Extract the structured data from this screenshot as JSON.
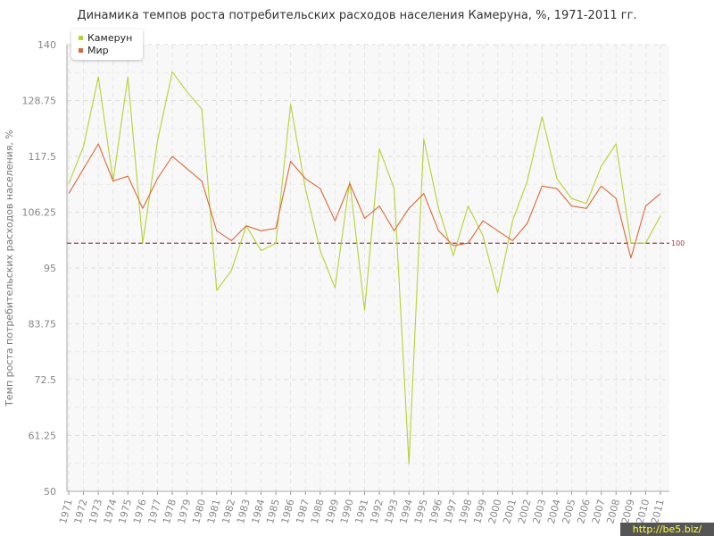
{
  "chart_data": {
    "type": "line",
    "title": "Динамика темпов роста потребительских расходов населения Камеруна, %, 1971-2011 гг.",
    "xlabel": "",
    "ylabel": "Темп роста потребительских расходов населения, %",
    "ylim": [
      50,
      140
    ],
    "yticks": [
      "50",
      "61.25",
      "72.5",
      "83.75",
      "95",
      "106.25",
      "117.5",
      "128.75",
      "140"
    ],
    "categories": [
      "1971",
      "1972",
      "1973",
      "1974",
      "1975",
      "1976",
      "1977",
      "1978",
      "1979",
      "1980",
      "1981",
      "1982",
      "1983",
      "1984",
      "1985",
      "1986",
      "1987",
      "1988",
      "1989",
      "1990",
      "1991",
      "1992",
      "1993",
      "1994",
      "1995",
      "1996",
      "1997",
      "1998",
      "1999",
      "2000",
      "2001",
      "2002",
      "2003",
      "2004",
      "2005",
      "2006",
      "2007",
      "2008",
      "2009",
      "2010",
      "2011"
    ],
    "series": [
      {
        "name": "Камерун",
        "color": "#b5d334",
        "values": [
          112.0,
          119.5,
          133.5,
          112.5,
          133.5,
          100.0,
          120.5,
          134.5,
          130.5,
          127.0,
          90.5,
          94.5,
          103.5,
          98.5,
          100.0,
          128.0,
          111.0,
          98.5,
          91.0,
          112.5,
          86.5,
          119.0,
          111.0,
          55.5,
          121.0,
          107.0,
          97.5,
          107.5,
          101.5,
          90.0,
          104.5,
          112.5,
          125.5,
          113.0,
          109.0,
          108.0,
          115.5,
          120.0,
          100.0,
          100.0,
          105.5
        ]
      },
      {
        "name": "Мир",
        "color": "#d9693a",
        "values": [
          110.0,
          115.0,
          120.0,
          112.5,
          113.5,
          107.0,
          113.0,
          117.5,
          115.0,
          112.5,
          102.5,
          100.5,
          103.5,
          102.5,
          103.0,
          116.5,
          113.0,
          111.0,
          104.5,
          112.0,
          105.0,
          107.5,
          102.5,
          107.0,
          110.0,
          102.5,
          99.5,
          100.0,
          104.5,
          102.5,
          100.5,
          104.0,
          111.5,
          111.0,
          107.5,
          107.0,
          111.5,
          109.0,
          97.0,
          107.5,
          110.0
        ]
      }
    ],
    "reference_line": {
      "value": 100,
      "label": "100",
      "color": "#9b3b4b"
    },
    "grid": true,
    "legend": "top-left"
  },
  "watermark": "http://be5.biz/"
}
